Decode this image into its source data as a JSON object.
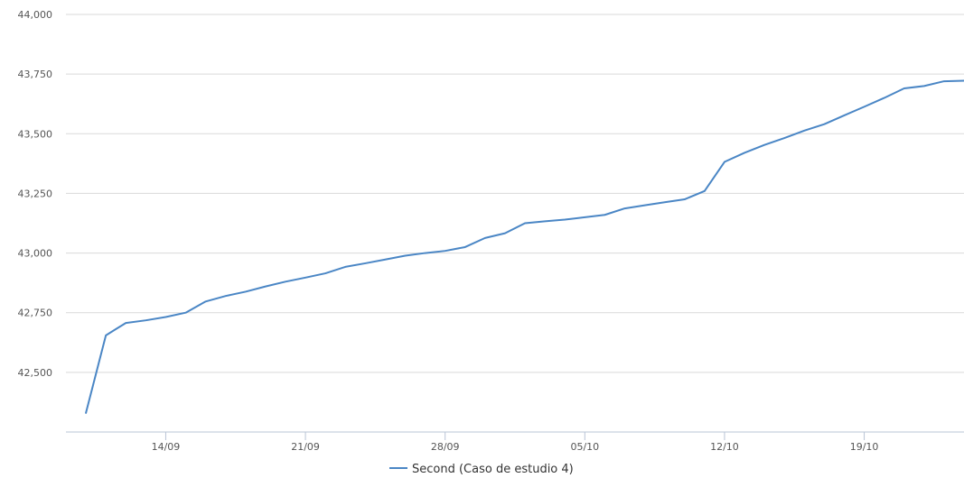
{
  "chart_data": {
    "type": "line",
    "y_ticks": [
      "42,500",
      "42,750",
      "43,000",
      "43,250",
      "43,500",
      "43,750",
      "44,000"
    ],
    "y_tick_values": [
      42500,
      42750,
      43000,
      43250,
      43500,
      43750,
      44000
    ],
    "ylim": [
      42250,
      44000
    ],
    "x_ticks": [
      "14/09",
      "21/09",
      "28/09",
      "05/10",
      "12/10",
      "19/10"
    ],
    "x_tick_dates": [
      "2020-09-14",
      "2020-09-21",
      "2020-09-28",
      "2020-10-05",
      "2020-10-12",
      "2020-10-19"
    ],
    "xlim": [
      "2020-09-09",
      "2020-10-24"
    ],
    "grid": true,
    "legend_position": "bottom-center",
    "colors": {
      "series": "#4a86c5"
    },
    "series": [
      {
        "name": "Second (Caso de estudio 4)",
        "x": [
          "2020-09-10",
          "2020-09-11",
          "2020-09-12",
          "2020-09-13",
          "2020-09-14",
          "2020-09-15",
          "2020-09-16",
          "2020-09-17",
          "2020-09-18",
          "2020-09-19",
          "2020-09-20",
          "2020-09-21",
          "2020-09-22",
          "2020-09-23",
          "2020-09-24",
          "2020-09-25",
          "2020-09-26",
          "2020-09-27",
          "2020-09-28",
          "2020-09-29",
          "2020-09-30",
          "2020-10-01",
          "2020-10-02",
          "2020-10-03",
          "2020-10-04",
          "2020-10-05",
          "2020-10-06",
          "2020-10-07",
          "2020-10-08",
          "2020-10-09",
          "2020-10-10",
          "2020-10-11",
          "2020-10-12",
          "2020-10-13",
          "2020-10-14",
          "2020-10-15",
          "2020-10-16",
          "2020-10-17",
          "2020-10-18",
          "2020-10-19",
          "2020-10-20",
          "2020-10-21",
          "2020-10-22",
          "2020-10-23",
          "2020-10-24"
        ],
        "values": [
          42330,
          42655,
          42707,
          42718,
          42732,
          42750,
          42797,
          42820,
          42838,
          42860,
          42880,
          42897,
          42915,
          42942,
          42957,
          42973,
          42989,
          43000,
          43009,
          43025,
          43063,
          43083,
          43125,
          43133,
          43140,
          43150,
          43160,
          43187,
          43200,
          43213,
          43225,
          43260,
          43382,
          43420,
          43453,
          43482,
          43513,
          43540,
          43577,
          43613,
          43650,
          43690,
          43700,
          43720,
          43722
        ]
      }
    ]
  }
}
